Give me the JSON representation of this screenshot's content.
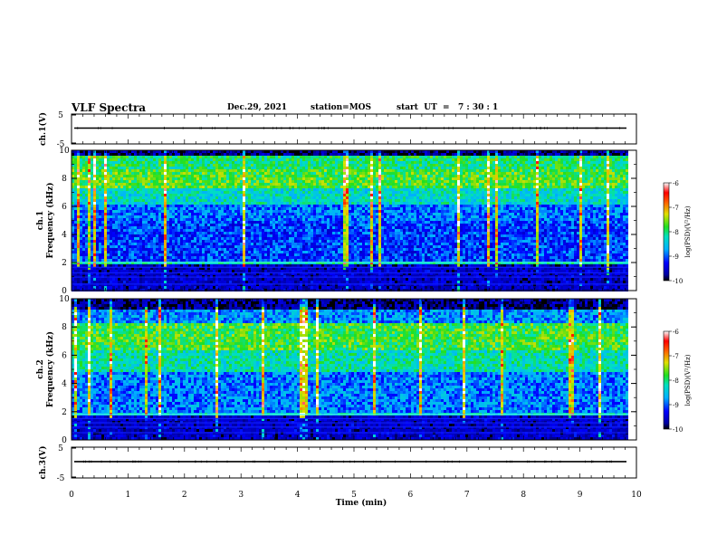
{
  "header": {
    "title": "VLF Spectra",
    "date": "Dec.29, 2021",
    "station": "station=MOS",
    "start": "start  UT  =   7 : 30 : 1"
  },
  "chart_data": [
    {
      "type": "line",
      "panel": "ch1-waveform",
      "ylabel": "ch.1(V)",
      "ylim": [
        -5,
        5
      ],
      "yticks": [
        "5",
        "-5"
      ],
      "xlim": [
        0,
        10
      ],
      "series": [
        {
          "x": [
            0,
            10
          ],
          "values": [
            0,
            0
          ]
        }
      ]
    },
    {
      "type": "heatmap",
      "panel": "ch1-spectrogram",
      "ylabel_line1": "ch.1",
      "ylabel_line2": "Frequency (kHz)",
      "ylim": [
        0,
        10
      ],
      "yticks": [
        "10",
        "8",
        "6",
        "4",
        "2",
        "0"
      ],
      "xlim": [
        0,
        9.85
      ],
      "colorbar": {
        "label": "log(PSD)(V²/Hz)",
        "range": [
          -10,
          -6
        ],
        "ticks": [
          "-6",
          "-7",
          "-8",
          "-9",
          "-10"
        ]
      }
    },
    {
      "type": "heatmap",
      "panel": "ch2-spectrogram",
      "ylabel_line1": "ch.2",
      "ylabel_line2": "Frequency (kHz)",
      "ylim": [
        0,
        10
      ],
      "yticks": [
        "10",
        "8",
        "6",
        "4",
        "2",
        "0"
      ],
      "xlim": [
        0,
        9.85
      ],
      "colorbar": {
        "label": "log(PSD)(V²/Hz)",
        "range": [
          -10,
          -6
        ],
        "ticks": [
          "-6",
          "-7",
          "-8",
          "-9",
          "-10"
        ]
      }
    },
    {
      "type": "line",
      "panel": "ch3-waveform",
      "ylabel": "ch.3(V)",
      "ylim": [
        -5,
        5
      ],
      "yticks": [
        "5",
        "-5"
      ],
      "xlim": [
        0,
        10
      ],
      "xlabel": "Time  (min)",
      "xticks": [
        "0",
        "1",
        "2",
        "3",
        "4",
        "5",
        "6",
        "7",
        "8",
        "9",
        "10"
      ],
      "series": [
        {
          "x": [
            0,
            10
          ],
          "values": [
            0,
            0
          ]
        }
      ]
    }
  ]
}
